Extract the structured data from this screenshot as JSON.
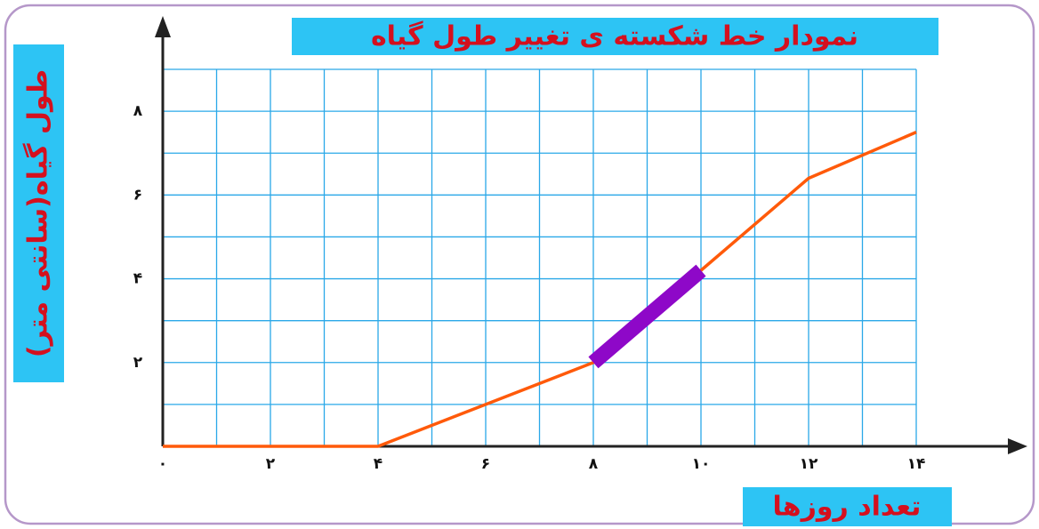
{
  "chart_data": {
    "type": "line",
    "title": "نمودار خط شکسته ی تغییر طول گیاه",
    "xlabel": "تعداد روزها",
    "ylabel": "طول گیاه(سانتی متر)",
    "x": [
      0,
      2,
      4,
      6,
      8,
      10,
      12,
      14
    ],
    "series": [
      {
        "color": "#ff5a0a",
        "values": [
          0,
          0,
          0,
          1,
          2,
          4.2,
          6.4,
          7.5
        ]
      },
      {
        "color": "#8e08c8",
        "values": [
          null,
          null,
          null,
          null,
          2,
          4.2,
          null,
          null
        ]
      }
    ],
    "xlim": [
      0,
      14
    ],
    "ylim": [
      0,
      9
    ],
    "xticks": [
      {
        "value": 0,
        "label": "۰"
      },
      {
        "value": 2,
        "label": "۲"
      },
      {
        "value": 4,
        "label": "۴"
      },
      {
        "value": 6,
        "label": "۶"
      },
      {
        "value": 8,
        "label": "۸"
      },
      {
        "value": 10,
        "label": "۱۰"
      },
      {
        "value": 12,
        "label": "۱۲"
      },
      {
        "value": 14,
        "label": "۱۴"
      }
    ],
    "yticks": [
      {
        "value": 2,
        "label": "۲"
      },
      {
        "value": 4,
        "label": "۴"
      },
      {
        "value": 6,
        "label": "۶"
      },
      {
        "value": 8,
        "label": "۸"
      }
    ],
    "xgrid": [
      0,
      1,
      2,
      3,
      4,
      5,
      6,
      7,
      8,
      9,
      10,
      11,
      12,
      13,
      14
    ],
    "ygrid": [
      0,
      1,
      2,
      3,
      4,
      5,
      6,
      7,
      8,
      9
    ],
    "grid": true
  }
}
